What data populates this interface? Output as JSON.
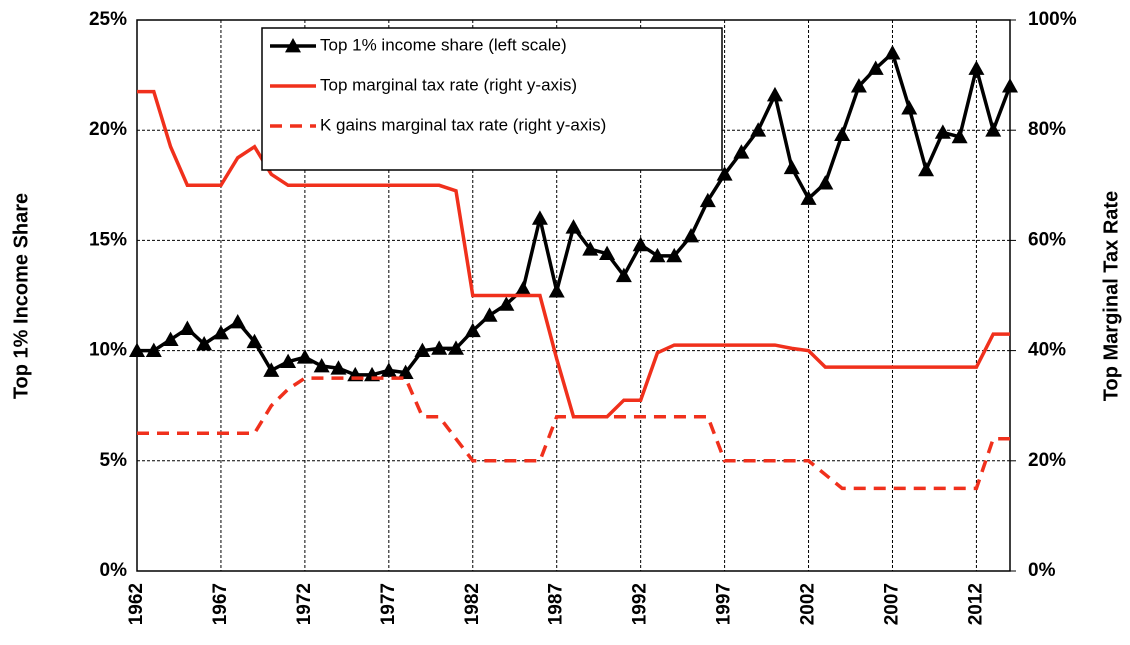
{
  "chart_data": {
    "type": "line",
    "x": [
      1962,
      1963,
      1964,
      1965,
      1966,
      1967,
      1968,
      1969,
      1970,
      1971,
      1972,
      1973,
      1974,
      1975,
      1976,
      1977,
      1978,
      1979,
      1980,
      1981,
      1982,
      1983,
      1984,
      1985,
      1986,
      1987,
      1988,
      1989,
      1990,
      1991,
      1992,
      1993,
      1994,
      1995,
      1996,
      1997,
      1998,
      1999,
      2000,
      2001,
      2002,
      2003,
      2004,
      2005,
      2006,
      2007,
      2008,
      2009,
      2010,
      2011,
      2012,
      2013,
      2014
    ],
    "xlim": [
      1962,
      2014
    ],
    "xticks": [
      1962,
      1967,
      1972,
      1977,
      1982,
      1987,
      1992,
      1997,
      2002,
      2007,
      2012
    ],
    "ylabel": "Top 1% Income Share",
    "y2label": "Top Marginal Tax Rate",
    "ylim": [
      0,
      25
    ],
    "yticks": [
      {
        "value": 0,
        "label": "0%"
      },
      {
        "value": 5,
        "label": "5%"
      },
      {
        "value": 10,
        "label": "10%"
      },
      {
        "value": 15,
        "label": "15%"
      },
      {
        "value": 20,
        "label": "20%"
      },
      {
        "value": 25,
        "label": "25%"
      }
    ],
    "y2lim": [
      0,
      100
    ],
    "y2ticks": [
      {
        "value": 0,
        "label": "0%"
      },
      {
        "value": 20,
        "label": "20%"
      },
      {
        "value": 40,
        "label": "40%"
      },
      {
        "value": 60,
        "label": "60%"
      },
      {
        "value": 80,
        "label": "80%"
      },
      {
        "value": 100,
        "label": "100%"
      }
    ],
    "grid": true,
    "legend": "top",
    "series": [
      {
        "name": "Top 1% income share (left scale)",
        "color": "#000000",
        "marker": "triangle",
        "style": "solid",
        "axis": "y",
        "values": [
          10.0,
          10.0,
          10.5,
          11.0,
          10.3,
          10.8,
          11.3,
          10.4,
          9.1,
          9.5,
          9.7,
          9.3,
          9.2,
          8.9,
          8.9,
          9.1,
          9.0,
          10.0,
          10.1,
          10.1,
          10.9,
          11.6,
          12.1,
          12.8,
          16.0,
          12.7,
          15.6,
          14.6,
          14.4,
          13.4,
          14.8,
          14.3,
          14.3,
          15.2,
          16.8,
          18.0,
          19.0,
          20.0,
          21.6,
          18.3,
          16.9,
          17.6,
          19.8,
          22.0,
          22.8,
          23.5,
          21.0,
          18.2,
          19.9,
          19.7,
          22.8,
          20.0,
          22.0
        ]
      },
      {
        "name": "Top marginal tax rate (right y-axis)",
        "color": "#f0301c",
        "style": "solid",
        "axis": "y2",
        "values": [
          87,
          87,
          77,
          70,
          70,
          70,
          75,
          77,
          72,
          70,
          70,
          70,
          70,
          70,
          70,
          70,
          70,
          70,
          70,
          69,
          50,
          50,
          50,
          50,
          50,
          38.5,
          28,
          28,
          28,
          31,
          31,
          39.6,
          41,
          41,
          41,
          41,
          41,
          41,
          41,
          40.4,
          40,
          37,
          37,
          37,
          37,
          37,
          37,
          37,
          37,
          37,
          37,
          43,
          43
        ]
      },
      {
        "name": "K gains marginal tax rate (right y-axis)",
        "color": "#f0301c",
        "style": "dashed",
        "axis": "y2",
        "values": [
          25,
          25,
          25,
          25,
          25,
          25,
          25,
          25,
          30,
          33,
          35,
          35,
          35,
          35,
          35,
          35,
          35,
          28,
          28,
          24,
          20,
          20,
          20,
          20,
          20,
          28,
          28,
          28,
          28,
          28,
          28,
          28,
          28,
          28,
          28,
          20,
          20,
          20,
          20,
          20,
          20,
          17.5,
          15,
          15,
          15,
          15,
          15,
          15,
          15,
          15,
          15,
          24,
          24
        ]
      }
    ]
  }
}
